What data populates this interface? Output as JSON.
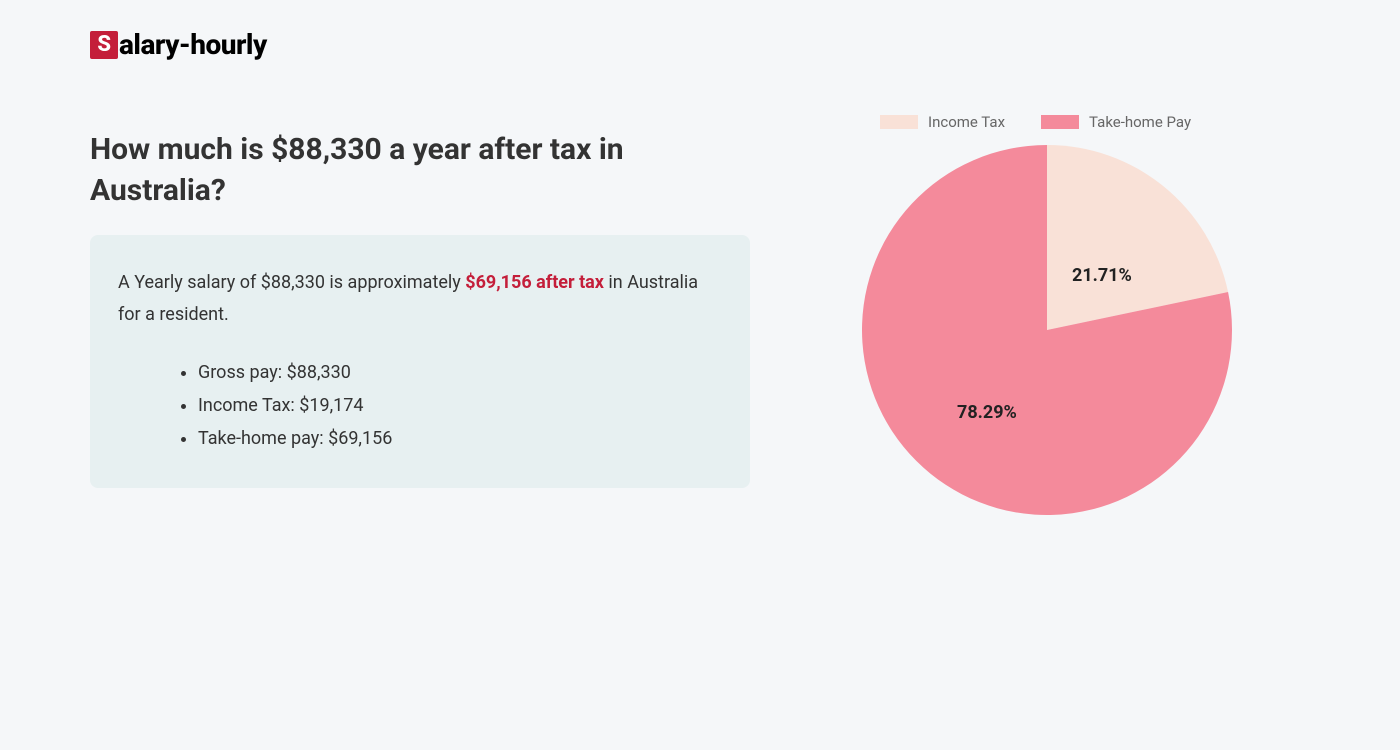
{
  "logo": {
    "badge": "S",
    "text": "alary-hourly"
  },
  "heading": "How much is $88,330 a year after tax in Australia?",
  "summary": {
    "prefix": "A Yearly salary of $88,330 is approximately ",
    "highlight": "$69,156 after tax",
    "suffix": " in Australia for a resident."
  },
  "bullets": [
    "Gross pay: $88,330",
    "Income Tax: $19,174",
    "Take-home pay: $69,156"
  ],
  "chart": {
    "type": "pie",
    "slices": [
      {
        "label": "Income Tax",
        "value": 21.71,
        "display": "21.71%",
        "color": "#f9e1d7"
      },
      {
        "label": "Take-home Pay",
        "value": 78.29,
        "display": "78.29%",
        "color": "#f48a9b"
      }
    ],
    "radius": 185,
    "label_fontsize": 18,
    "label_fontweight": 700,
    "label_color": "#222222",
    "legend_fontsize": 15,
    "legend_color": "#666666",
    "background_color": "#f5f7f9"
  },
  "colors": {
    "accent": "#c41e3a",
    "summary_bg": "#e7f0f1",
    "page_bg": "#f5f7f9",
    "text": "#333333"
  }
}
